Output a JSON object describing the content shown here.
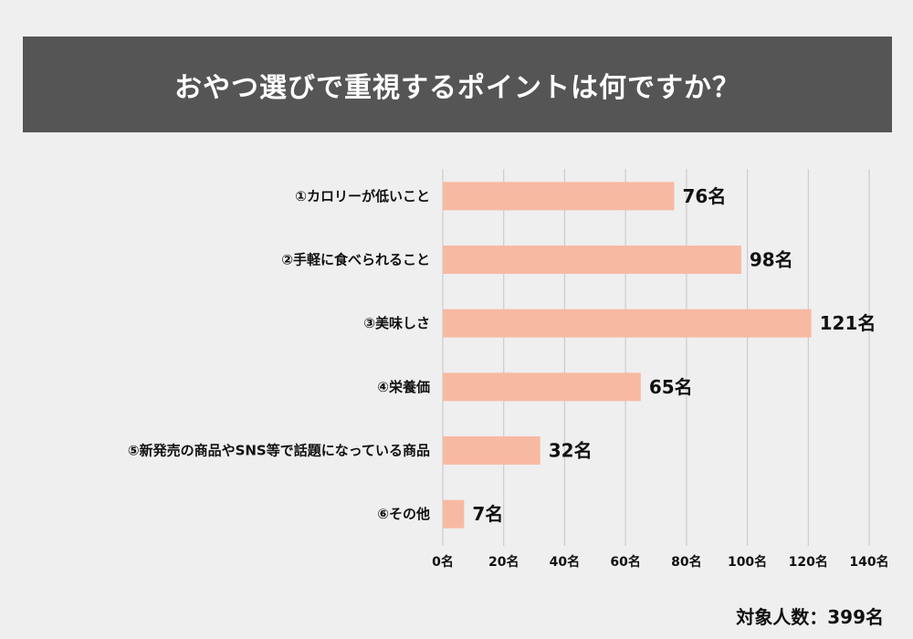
{
  "header": {
    "title": "おやつ選びで重視するポイントは何ですか？"
  },
  "chart_data": {
    "type": "bar",
    "orientation": "horizontal",
    "title": "おやつ選びで重視するポイントは何ですか？",
    "categories": [
      "①カロリーが低いこと",
      "②手軽に食べられること",
      "③美味しさ",
      "④栄養価",
      "⑤新発売の商品やSNS等で話題になっている商品",
      "⑥その他"
    ],
    "values": [
      76,
      98,
      121,
      65,
      32,
      7
    ],
    "value_labels": [
      "76名",
      "98名",
      "121名",
      "65名",
      "32名",
      "7名"
    ],
    "xlim": [
      0,
      140
    ],
    "x_ticks": [
      0,
      20,
      40,
      60,
      80,
      100,
      120,
      140
    ],
    "x_tick_labels": [
      "0名",
      "20名",
      "40名",
      "60名",
      "80名",
      "100名",
      "120名",
      "140名"
    ],
    "grid": true,
    "bar_color": "#f8b9a3",
    "grid_color": "#cccccc"
  },
  "footer": {
    "note": "対象人数：399名"
  },
  "colors": {
    "background": "#efefef",
    "title_bar": "#555555",
    "title_text": "#ffffff"
  }
}
